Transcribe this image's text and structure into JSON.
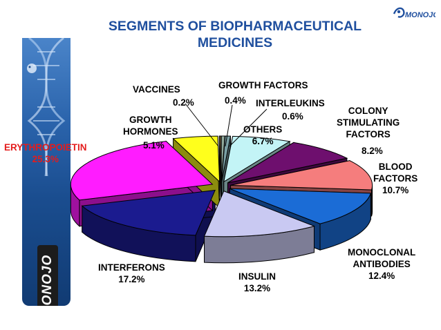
{
  "slide": {
    "title_line1": "SEGMENTS OF BIOPHARMACEUTICAL",
    "title_line2": "MEDICINES",
    "corner_logo_text": "MONOJO",
    "sidebar_logo_text": "MONOJO"
  },
  "colors": {
    "title": "#1f4f9e",
    "highlight_label": "#e41c1c"
  },
  "chart_data": {
    "type": "pie",
    "title": "SEGMENTS OF BIOPHARMACEUTICAL MEDICINES",
    "unit": "%",
    "three_d": true,
    "exploded": true,
    "slices": [
      {
        "label_lines": [
          "GROWTH FACTORS"
        ],
        "value_text": "0.4%",
        "value": 0.4,
        "color": "#8fa89a"
      },
      {
        "label_lines": [
          "INTERLEUKINS"
        ],
        "value_text": "0.6%",
        "value": 0.6,
        "color": "#7aa0a4"
      },
      {
        "label_lines": [
          "OTHERS"
        ],
        "value_text": "6.7%",
        "value": 6.7,
        "color": "#c3f4f6"
      },
      {
        "label_lines": [
          "COLONY",
          "STIMULATING",
          "FACTORS"
        ],
        "value_text": "8.2%",
        "value": 8.2,
        "color": "#6e0f6e"
      },
      {
        "label_lines": [
          "BLOOD",
          "FACTORS"
        ],
        "value_text": "10.7%",
        "value": 10.7,
        "color": "#f57d7d"
      },
      {
        "label_lines": [
          "MONOCLONAL",
          "ANTIBODIES"
        ],
        "value_text": "12.4%",
        "value": 12.4,
        "color": "#1b6cd6"
      },
      {
        "label_lines": [
          "INSULIN"
        ],
        "value_text": "13.2%",
        "value": 13.2,
        "color": "#c9c9f2"
      },
      {
        "label_lines": [
          "INTERFERONS"
        ],
        "value_text": "17.2%",
        "value": 17.2,
        "color": "#1b1b8f"
      },
      {
        "label_lines": [
          "ERYTHROPOIETIN"
        ],
        "value_text": "25.3%",
        "value": 25.3,
        "color": "#ff1cff"
      },
      {
        "label_lines": [
          "GROWTH",
          "HORMONES"
        ],
        "value_text": "5.1%",
        "value": 5.1,
        "color": "#ffff1c"
      },
      {
        "label_lines": [
          "VACCINES"
        ],
        "value_text": "0.2%",
        "value": 0.2,
        "color": "#6e5a3a"
      }
    ]
  }
}
